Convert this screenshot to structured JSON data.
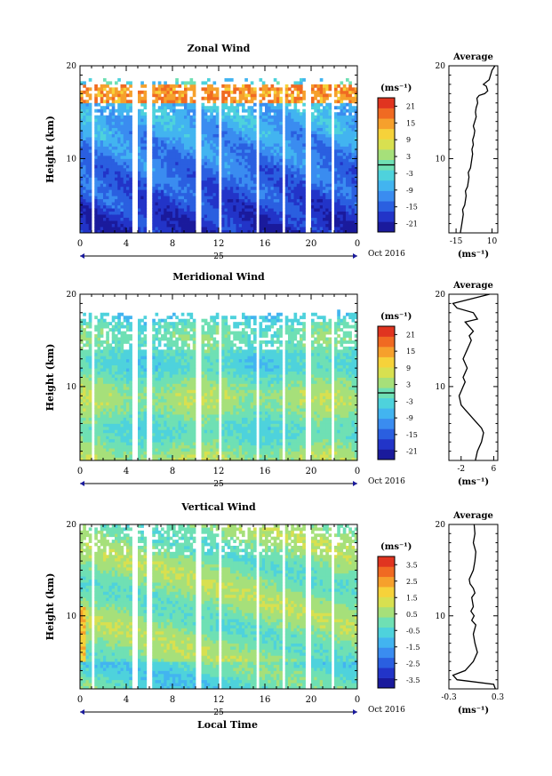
{
  "chart_data": [
    {
      "type": "heatmap",
      "title": "Zonal Wind",
      "ylabel": "Height (km)",
      "x_ticks": [
        "0",
        "4",
        "8",
        "12",
        "16",
        "20",
        "0"
      ],
      "x_sublabel": "25",
      "date_label": "Oct 2016",
      "xlim": [
        0,
        24
      ],
      "ylim": [
        2,
        20
      ],
      "y_ticks": [
        "10",
        "20"
      ],
      "colorbar": {
        "unit": "(ms⁻¹)",
        "ticks": [
          "21",
          "15",
          "9",
          "3",
          "-3",
          "-9",
          "-15",
          "-21"
        ],
        "range": [
          -24,
          24
        ],
        "zero_line": 0
      },
      "profile": {
        "title": "Average",
        "xlabel": "(ms⁻¹)",
        "x_ticks": [
          "-15",
          "10"
        ],
        "xlim": [
          -20,
          14
        ],
        "y_ticks": [
          "10",
          "20"
        ],
        "x": [
          -12,
          -11,
          -10,
          -10.5,
          -9,
          -8,
          -8.5,
          -7,
          -6,
          -6.5,
          -5,
          -4.5,
          -4,
          -3.5,
          -4,
          -3,
          -3.5,
          -2.5,
          -2,
          -3,
          -2,
          -1,
          -1.5,
          -1,
          0,
          -0.5,
          1,
          5,
          7,
          6,
          4,
          8,
          9,
          10,
          12
        ],
        "y": [
          2,
          3,
          4,
          4.5,
          5,
          6,
          6.5,
          7,
          8,
          8.5,
          9,
          9.5,
          10,
          10.5,
          11,
          11.5,
          12,
          12.5,
          13,
          13.5,
          14,
          14.5,
          15,
          15.5,
          16,
          16.5,
          16.8,
          17,
          17.3,
          17.8,
          18,
          18.5,
          19,
          19.5,
          20
        ]
      }
    },
    {
      "type": "heatmap",
      "title": "Meridional Wind",
      "ylabel": "Height (km)",
      "x_ticks": [
        "0",
        "4",
        "8",
        "12",
        "16",
        "20",
        "0"
      ],
      "x_sublabel": "25",
      "date_label": "Oct 2016",
      "xlim": [
        0,
        24
      ],
      "ylim": [
        2,
        20
      ],
      "y_ticks": [
        "10",
        "20"
      ],
      "colorbar": {
        "unit": "(ms⁻¹)",
        "ticks": [
          "21",
          "15",
          "9",
          "3",
          "-3",
          "-9",
          "-15",
          "-21"
        ],
        "range": [
          -24,
          24
        ],
        "zero_line": 0
      },
      "profile": {
        "title": "Average",
        "xlabel": "(ms⁻¹)",
        "x_ticks": [
          "-2",
          "6"
        ],
        "xlim": [
          -5,
          7
        ],
        "y_ticks": [
          "10",
          "20"
        ],
        "x": [
          1.5,
          2,
          3,
          3.5,
          3,
          2,
          1,
          0,
          -1,
          -2,
          -2.5,
          -2,
          -1.5,
          -1,
          -1.5,
          -1,
          -0.5,
          -1,
          -1.5,
          -1,
          -0.5,
          0,
          0.5,
          0,
          1,
          0,
          -1,
          2,
          1,
          -3,
          -4,
          5
        ],
        "y": [
          2,
          3,
          4,
          5,
          5.5,
          6,
          6.5,
          7,
          7.5,
          8,
          9,
          9.5,
          10,
          10.5,
          11,
          11.5,
          12,
          12.5,
          13,
          13.5,
          14,
          14.5,
          15,
          15.5,
          16,
          16.5,
          17,
          17.3,
          18,
          18.5,
          19,
          20
        ]
      }
    },
    {
      "type": "heatmap",
      "title": "Vertical Wind",
      "ylabel": "Height (km)",
      "xlabel": "Local Time",
      "x_ticks": [
        "0",
        "4",
        "8",
        "12",
        "16",
        "20",
        "0"
      ],
      "x_sublabel": "25",
      "date_label": "Oct 2016",
      "xlim": [
        0,
        24
      ],
      "ylim": [
        2,
        20
      ],
      "y_ticks": [
        "10",
        "20"
      ],
      "colorbar": {
        "unit": "(ms⁻¹)",
        "ticks": [
          "3.5",
          "2.5",
          "1.5",
          "0.5",
          "-0.5",
          "-1.5",
          "-2.5",
          "-3.5"
        ],
        "range": [
          -4,
          4
        ]
      },
      "profile": {
        "title": "Average",
        "xlabel": "(ms⁻¹)",
        "x_ticks": [
          "-0.3",
          "0.3"
        ],
        "xlim": [
          -0.3,
          0.3
        ],
        "y_ticks": [
          "10",
          "20"
        ],
        "x": [
          0.27,
          0.25,
          -0.2,
          -0.25,
          -0.1,
          0.0,
          0.05,
          0.02,
          0.0,
          0.03,
          -0.02,
          0.01,
          -0.03,
          0.0,
          -0.02,
          0.02,
          0.0,
          -0.04,
          -0.05,
          0.0,
          0.02,
          0.03,
          0.0,
          0.02,
          0.01
        ],
        "y": [
          2,
          2.5,
          3,
          3.5,
          4,
          5,
          6,
          7,
          8,
          9,
          9.5,
          10,
          10.5,
          11,
          12,
          12.5,
          13,
          13.5,
          14,
          15,
          16,
          17,
          18,
          19,
          20
        ]
      }
    }
  ]
}
